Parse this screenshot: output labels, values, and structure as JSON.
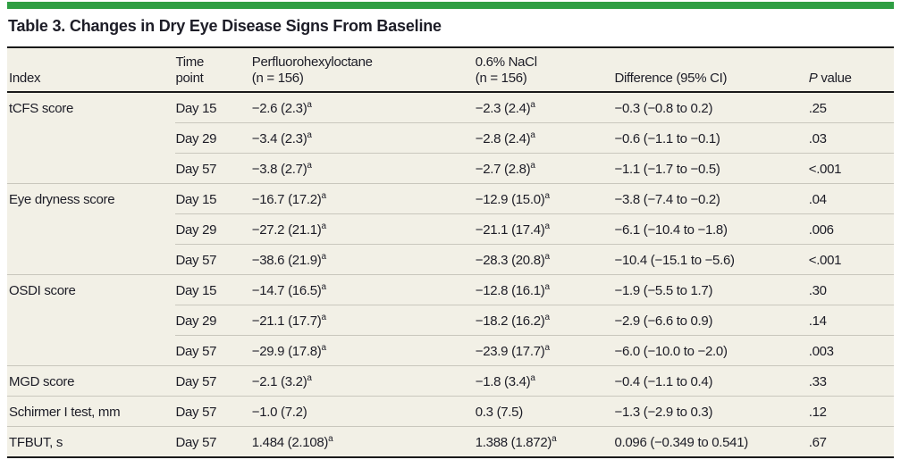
{
  "page": {
    "title": "Table 3. Changes in Dry Eye Disease Signs From Baseline"
  },
  "colors": {
    "accent_green": "#2f9e43",
    "table_background": "#f2f0e6",
    "rule_dark": "#1a1a1a",
    "rule_light": "#c9c7bd",
    "text": "#1d1d27"
  },
  "header": {
    "index": "Index",
    "time_line1": "Time",
    "time_line2": "point",
    "pfho_line1": "Perfluorohexyloctane",
    "pfho_line2": "(n = 156)",
    "nacl_line1": "0.6% NaCl",
    "nacl_line2": "(n = 156)",
    "difference": "Difference (95% CI)",
    "p_italic": "P",
    "p_rest": " value"
  },
  "footnote_marker": "a",
  "groups": [
    {
      "index": "tCFS score",
      "rows": [
        {
          "time": "Day 15",
          "pfho": "−2.6 (2.3)",
          "pfho_sup": true,
          "nacl": "−2.3 (2.4)",
          "nacl_sup": true,
          "difference": "−0.3 (−0.8 to 0.2)",
          "p": ".25"
        },
        {
          "time": "Day 29",
          "pfho": "−3.4 (2.3)",
          "pfho_sup": true,
          "nacl": "−2.8 (2.4)",
          "nacl_sup": true,
          "difference": "−0.6 (−1.1 to −0.1)",
          "p": ".03"
        },
        {
          "time": "Day 57",
          "pfho": "−3.8 (2.7)",
          "pfho_sup": true,
          "nacl": "−2.7 (2.8)",
          "nacl_sup": true,
          "difference": "−1.1 (−1.7 to −0.5)",
          "p": "<.001"
        }
      ]
    },
    {
      "index": "Eye dryness score",
      "rows": [
        {
          "time": "Day 15",
          "pfho": "−16.7 (17.2)",
          "pfho_sup": true,
          "nacl": "−12.9 (15.0)",
          "nacl_sup": true,
          "difference": "−3.8 (−7.4 to −0.2)",
          "p": ".04"
        },
        {
          "time": "Day 29",
          "pfho": "−27.2 (21.1)",
          "pfho_sup": true,
          "nacl": "−21.1 (17.4)",
          "nacl_sup": true,
          "difference": "−6.1 (−10.4 to −1.8)",
          "p": ".006"
        },
        {
          "time": "Day 57",
          "pfho": "−38.6 (21.9)",
          "pfho_sup": true,
          "nacl": "−28.3 (20.8)",
          "nacl_sup": true,
          "difference": "−10.4 (−15.1 to −5.6)",
          "p": "<.001"
        }
      ]
    },
    {
      "index": "OSDI score",
      "rows": [
        {
          "time": "Day 15",
          "pfho": "−14.7 (16.5)",
          "pfho_sup": true,
          "nacl": "−12.8 (16.1)",
          "nacl_sup": true,
          "difference": "−1.9 (−5.5 to 1.7)",
          "p": ".30"
        },
        {
          "time": "Day 29",
          "pfho": "−21.1 (17.7)",
          "pfho_sup": true,
          "nacl": "−18.2 (16.2)",
          "nacl_sup": true,
          "difference": "−2.9 (−6.6 to 0.9)",
          "p": ".14"
        },
        {
          "time": "Day 57",
          "pfho": "−29.9 (17.8)",
          "pfho_sup": true,
          "nacl": "−23.9 (17.7)",
          "nacl_sup": true,
          "difference": "−6.0 (−10.0 to −2.0)",
          "p": ".003"
        }
      ]
    },
    {
      "index": "MGD score",
      "rows": [
        {
          "time": "Day 57",
          "pfho": "−2.1 (3.2)",
          "pfho_sup": true,
          "nacl": "−1.8 (3.4)",
          "nacl_sup": true,
          "difference": "−0.4 (−1.1 to 0.4)",
          "p": ".33"
        }
      ]
    },
    {
      "index": "Schirmer I test, mm",
      "rows": [
        {
          "time": "Day 57",
          "pfho": "−1.0 (7.2)",
          "pfho_sup": false,
          "nacl": "0.3 (7.5)",
          "nacl_sup": false,
          "difference": "−1.3 (−2.9 to 0.3)",
          "p": ".12"
        }
      ]
    },
    {
      "index": "TFBUT, s",
      "rows": [
        {
          "time": "Day 57",
          "pfho": "1.484 (2.108)",
          "pfho_sup": true,
          "nacl": "1.388 (1.872)",
          "nacl_sup": true,
          "difference": "0.096 (−0.349 to 0.541)",
          "p": ".67"
        }
      ]
    }
  ]
}
